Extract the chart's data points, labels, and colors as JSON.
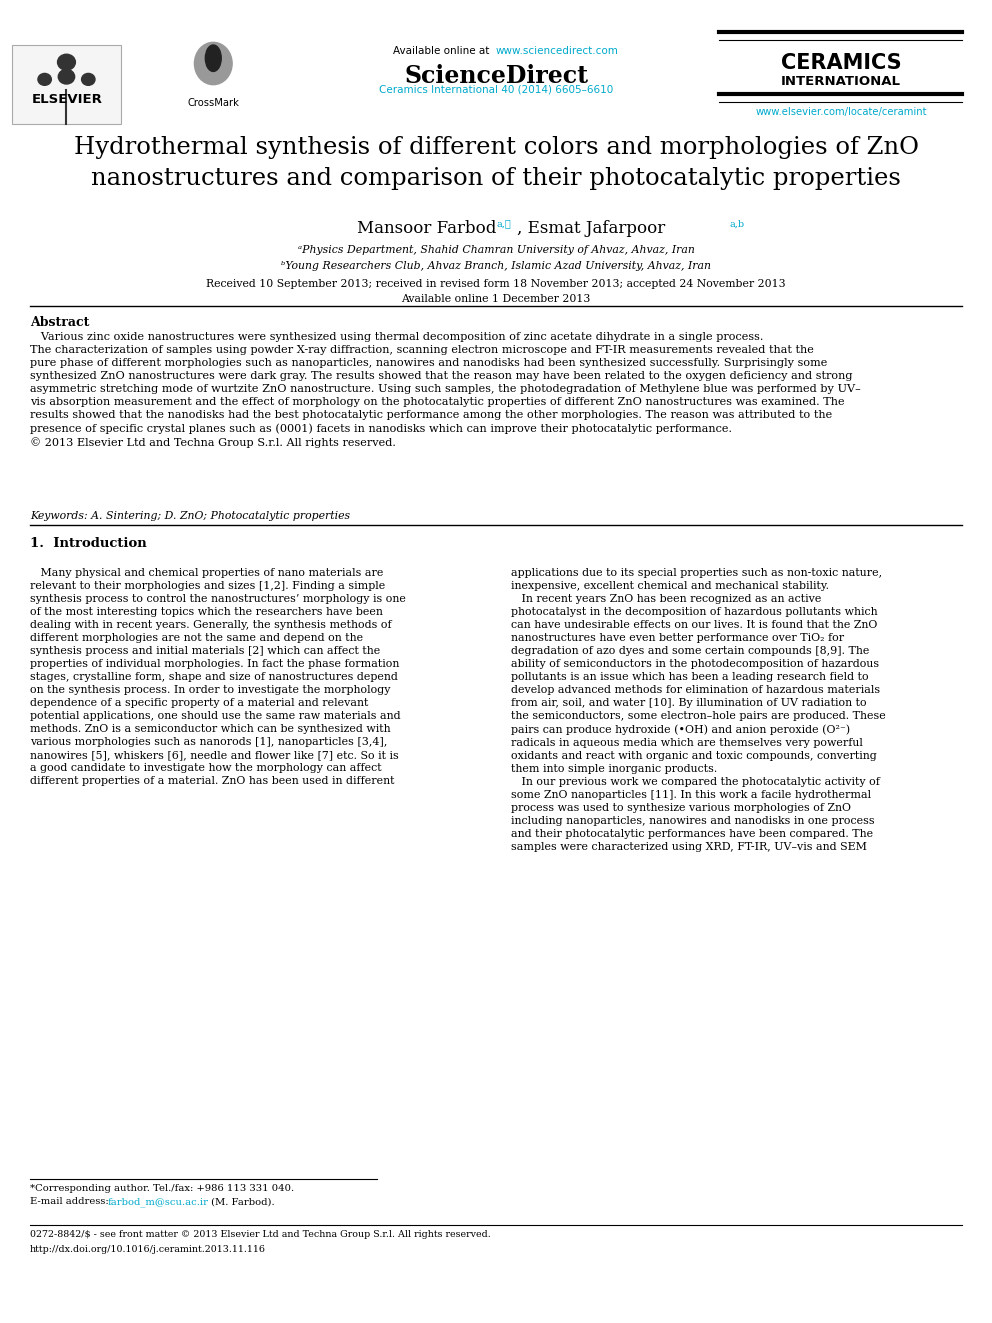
{
  "page_width": 9.92,
  "page_height": 13.23,
  "bg_color": "#ffffff",
  "header": {
    "available_online": "Available online at ",
    "sciencedirect_url": "www.sciencedirect.com",
    "sciencedirect_label": "ScienceDirect",
    "journal_line1": "CERAMICS",
    "journal_line2": "INTERNATIONAL",
    "journal_info": "Ceramics International 40 (2014) 6605–6610",
    "elsevier_label": "ELSEVIER",
    "crossmark_label": "CrossMark",
    "elsevier_url": "www.elsevier.com/locate/ceramint"
  },
  "title": "Hydrothermal synthesis of different colors and morphologies of ZnO\nnanostructures and comparison of their photocatalytic properties",
  "affil_a": "ᵃPhysics Department, Shahid Chamran University of Ahvaz, Ahvaz, Iran",
  "affil_b": "ᵇYoung Researchers Club, Ahvaz Branch, Islamic Azad University, Ahvaz, Iran",
  "received": "Received 10 September 2013; received in revised form 18 November 2013; accepted 24 November 2013",
  "available": "Available online 1 December 2013",
  "abstract_title": "Abstract",
  "abstract_text": "   Various zinc oxide nanostructures were synthesized using thermal decomposition of zinc acetate dihydrate in a single process.\nThe characterization of samples using powder X-ray diffraction, scanning electron microscope and FT-IR measurements revealed that the\npure phase of different morphologies such as nanoparticles, nanowires and nanodisks had been synthesized successfully. Surprisingly some\nsynthesized ZnO nanostructures were dark gray. The results showed that the reason may have been related to the oxygen deficiency and strong\nasymmetric stretching mode of wurtzite ZnO nanostructure. Using such samples, the photodegradation of Methylene blue was performed by UV–\nvis absorption measurement and the effect of morphology on the photocatalytic properties of different ZnO nanostructures was examined. The\nresults showed that the nanodisks had the best photocatalytic performance among the other morphologies. The reason was attributed to the\npresence of specific crystal planes such as (0001) facets in nanodisks which can improve their photocatalytic performance.\n© 2013 Elsevier Ltd and Techna Group S.r.l. All rights reserved.",
  "keywords": "Keywords: A. Sintering; D. ZnO; Photocatalytic properties",
  "section1_title": "1.  Introduction",
  "intro_left": "   Many physical and chemical properties of nano materials are\nrelevant to their morphologies and sizes [1,2]. Finding a simple\nsynthesis process to control the nanostructures’ morphology is one\nof the most interesting topics which the researchers have been\ndealing with in recent years. Generally, the synthesis methods of\ndifferent morphologies are not the same and depend on the\nsynthesis process and initial materials [2] which can affect the\nproperties of individual morphologies. In fact the phase formation\nstages, crystalline form, shape and size of nanostructures depend\non the synthesis process. In order to investigate the morphology\ndependence of a specific property of a material and relevant\npotential applications, one should use the same raw materials and\nmethods. ZnO is a semiconductor which can be synthesized with\nvarious morphologies such as nanorods [1], nanoparticles [3,4],\nnanowires [5], whiskers [6], needle and flower like [7] etc. So it is\na good candidate to investigate how the morphology can affect\ndifferent properties of a material. ZnO has been used in different",
  "intro_right": "applications due to its special properties such as non-toxic nature,\ninexpensive, excellent chemical and mechanical stability.\n   In recent years ZnO has been recognized as an active\nphotocatalyst in the decomposition of hazardous pollutants which\ncan have undesirable effects on our lives. It is found that the ZnO\nnanostructures have even better performance over TiO₂ for\ndegradation of azo dyes and some certain compounds [8,9]. The\nability of semiconductors in the photodecomposition of hazardous\npollutants is an issue which has been a leading research field to\ndevelop advanced methods for elimination of hazardous materials\nfrom air, soil, and water [10]. By illumination of UV radiation to\nthe semiconductors, some electron–hole pairs are produced. These\npairs can produce hydroxide (•OH) and anion peroxide (O²⁻)\nradicals in aqueous media which are themselves very powerful\noxidants and react with organic and toxic compounds, converting\nthem into simple inorganic products.\n   In our previous work we compared the photocatalytic activity of\nsome ZnO nanoparticles [11]. In this work a facile hydrothermal\nprocess was used to synthesize various morphologies of ZnO\nincluding nanoparticles, nanowires and nanodisks in one process\nand their photocatalytic performances have been compared. The\nsamples were characterized using XRD, FT-IR, UV–vis and SEM",
  "footer_left": "*Corresponding author. Tel./fax: +986 113 331 040.",
  "footer_email_prefix": "E-mail address: ",
  "footer_email_link": "farbod_m@scu.ac.ir",
  "footer_email_suffix": " (M. Farbod).",
  "footer_bottom1": "0272-8842/$ - see front matter © 2013 Elsevier Ltd and Techna Group S.r.l. All rights reserved.",
  "footer_bottom2": "http://dx.doi.org/10.1016/j.ceramint.2013.11.116",
  "link_color": "#00AACC",
  "text_color": "#000000"
}
